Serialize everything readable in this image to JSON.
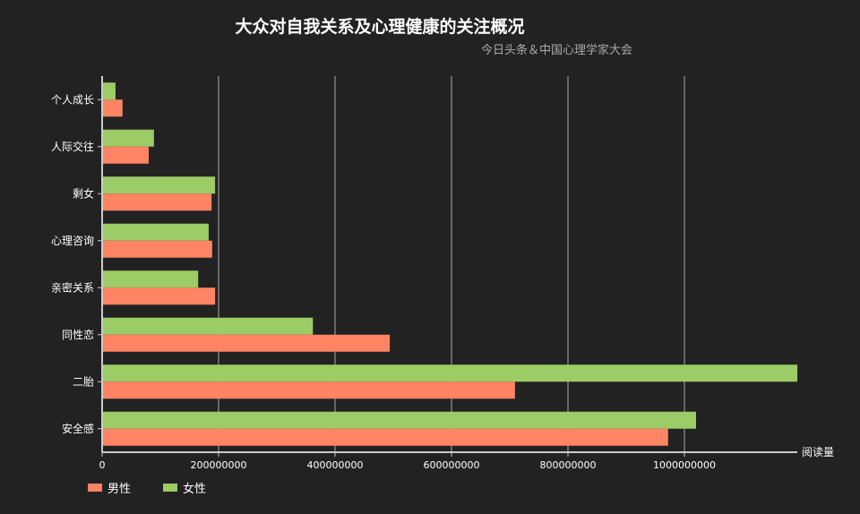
{
  "chart_data": {
    "type": "bar",
    "orientation": "horizontal",
    "title": "大众对自我关系及心理健康的关注概况",
    "subtitle": "今日头条＆中国心理学家大会",
    "xlabel": "阅读量",
    "ylabel": "",
    "categories": [
      "个人成长",
      "人际交往",
      "剩女",
      "心理咨询",
      "亲密关系",
      "同性恋",
      "二胎",
      "安全感"
    ],
    "series": [
      {
        "name": "男性",
        "color": "#ff8464",
        "values": [
          35000000,
          80000000,
          188000000,
          189000000,
          194000000,
          494000000,
          709000000,
          972000000
        ]
      },
      {
        "name": "女性",
        "color": "#9ccc65",
        "values": [
          23000000,
          89000000,
          194000000,
          183000000,
          165000000,
          362000000,
          1194000000,
          1020000000
        ]
      }
    ],
    "xlim": [
      0,
      1194000000
    ],
    "xticks": [
      "0",
      "200000000",
      "400000000",
      "600000000",
      "800000000",
      "1000000000"
    ],
    "grid": true,
    "legend": "bottom-left",
    "colors": {
      "background": "#222222",
      "text": "#ffffff",
      "grid": "#aaaaaa"
    }
  }
}
